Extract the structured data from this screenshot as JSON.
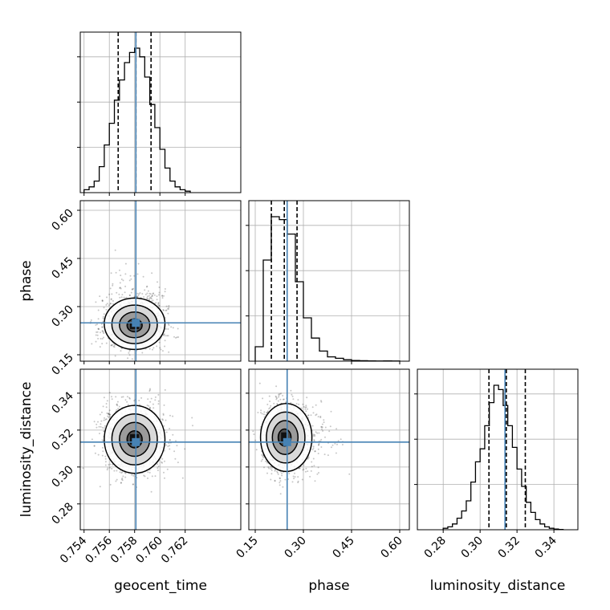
{
  "chart_data": {
    "type": "corner",
    "truth_color": "#4682b4",
    "parameters": [
      {
        "name": "geocent_time",
        "truth": 0.7581,
        "quantiles": [
          0.7567,
          0.7581,
          0.7593
        ]
      },
      {
        "name": "phase",
        "truth": 0.2494,
        "quantiles": [
          0.2002,
          0.2405,
          0.2802
        ]
      },
      {
        "name": "luminosity_distance",
        "truth": 0.3135,
        "quantiles": [
          0.3048,
          0.3142,
          0.3245
        ]
      }
    ],
    "ticks": {
      "geocent_time": [
        "0.754",
        "0.756",
        "0.758",
        "0.760",
        "0.762"
      ],
      "phase": [
        "0.15",
        "0.30",
        "0.45",
        "0.60"
      ],
      "luminosity_distance": [
        "0.28",
        "0.30",
        "0.32",
        "0.34"
      ]
    },
    "ranges": {
      "geocent_time": [
        0.7537,
        0.7664
      ],
      "phase": [
        0.13,
        0.63
      ],
      "luminosity_distance": [
        0.266,
        0.353
      ]
    },
    "histograms": {
      "geocent_time": {
        "edges": [
          0.754,
          0.7544,
          0.7548,
          0.7552,
          0.7556,
          0.756,
          0.7564,
          0.7568,
          0.7572,
          0.7576,
          0.758,
          0.7584,
          0.7588,
          0.7592,
          0.7596,
          0.76,
          0.7604,
          0.7608,
          0.7612,
          0.7616,
          0.762,
          0.7624
        ],
        "counts": [
          0.02,
          0.04,
          0.08,
          0.18,
          0.33,
          0.48,
          0.64,
          0.78,
          0.9,
          0.97,
          1.0,
          0.94,
          0.8,
          0.61,
          0.45,
          0.3,
          0.17,
          0.08,
          0.04,
          0.02,
          0.01
        ]
      },
      "phase": {
        "edges": [
          0.15,
          0.175,
          0.2,
          0.225,
          0.25,
          0.275,
          0.3,
          0.325,
          0.35,
          0.375,
          0.4,
          0.425,
          0.45,
          0.475,
          0.5,
          0.525,
          0.55,
          0.575,
          0.6
        ],
        "counts": [
          0.1,
          0.7,
          1.0,
          0.98,
          0.88,
          0.55,
          0.3,
          0.16,
          0.07,
          0.03,
          0.02,
          0.01,
          0.005,
          0.003,
          0.002,
          0.001,
          0.002,
          0.001
        ]
      },
      "luminosity_distance": {
        "edges": [
          0.28,
          0.2825,
          0.285,
          0.2875,
          0.29,
          0.2925,
          0.295,
          0.2975,
          0.3,
          0.3025,
          0.305,
          0.3075,
          0.31,
          0.3125,
          0.315,
          0.3175,
          0.32,
          0.3225,
          0.325,
          0.3275,
          0.33,
          0.3325,
          0.335,
          0.3375,
          0.34,
          0.3425,
          0.345
        ],
        "counts": [
          0.01,
          0.02,
          0.04,
          0.08,
          0.13,
          0.2,
          0.33,
          0.47,
          0.56,
          0.72,
          0.88,
          1.0,
          0.97,
          0.86,
          0.72,
          0.57,
          0.42,
          0.3,
          0.19,
          0.12,
          0.07,
          0.04,
          0.02,
          0.01,
          0.005,
          0.002
        ]
      }
    },
    "joint": [
      {
        "x": "geocent_time",
        "y": "phase",
        "x_center": 0.758,
        "y_center": 0.24,
        "x_sigma": 0.0012,
        "y_sigma": 0.032,
        "x_skew": 0.0,
        "y_skew": 0.9
      },
      {
        "x": "geocent_time",
        "y": "luminosity_distance",
        "x_center": 0.758,
        "y_center": 0.315,
        "x_sigma": 0.0012,
        "y_sigma": 0.0092,
        "x_skew": 0.0,
        "y_skew": 0.0
      },
      {
        "x": "phase",
        "y": "luminosity_distance",
        "x_center": 0.24,
        "y_center": 0.316,
        "x_sigma": 0.032,
        "y_sigma": 0.0092,
        "x_skew": 0.9,
        "y_skew": 0.0
      }
    ],
    "grid": true
  }
}
